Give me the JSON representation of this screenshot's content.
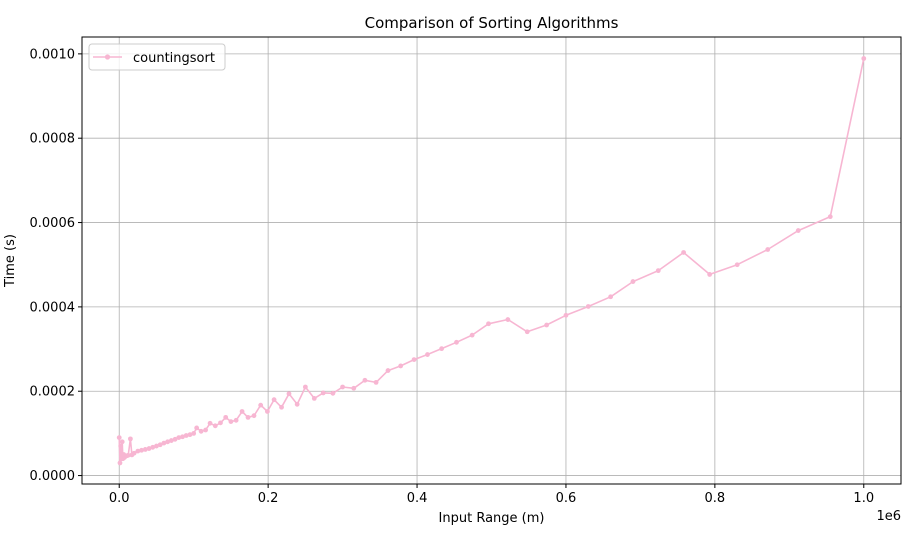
{
  "chart_data": {
    "type": "line",
    "title": "Comparison of Sorting Algorithms",
    "xlabel": "Input Range (m)",
    "ylabel": "Time (s)",
    "x_offset_text": "1e6",
    "xlim": [
      -0.05,
      1.05
    ],
    "ylim": [
      -2e-05,
      0.00104
    ],
    "x_ticks": [
      0.0,
      0.2,
      0.4,
      0.6,
      0.8,
      1.0
    ],
    "x_tick_labels": [
      "0.0",
      "0.2",
      "0.4",
      "0.6",
      "0.8",
      "1.0"
    ],
    "y_ticks": [
      0.0,
      0.0002,
      0.0004,
      0.0006,
      0.0008,
      0.001
    ],
    "y_tick_labels": [
      "0.0000",
      "0.0002",
      "0.0004",
      "0.0006",
      "0.0008",
      "0.0010"
    ],
    "grid": true,
    "legend_position": "top-left",
    "colors": {
      "series": "#f7b6d2",
      "grid": "#b0b0b0",
      "axis": "#000000"
    },
    "series": [
      {
        "name": "countingsort",
        "x": [
          0,
          0.001,
          0.002,
          0.003,
          0.004,
          0.005,
          0.006,
          0.007,
          0.008,
          0.01,
          0.012,
          0.015,
          0.017,
          0.02,
          0.025,
          0.03,
          0.035,
          0.04,
          0.045,
          0.05,
          0.055,
          0.06,
          0.065,
          0.07,
          0.075,
          0.08,
          0.085,
          0.09,
          0.095,
          0.1,
          0.104,
          0.11,
          0.116,
          0.122,
          0.129,
          0.136,
          0.143,
          0.15,
          0.157,
          0.165,
          0.173,
          0.181,
          0.19,
          0.199,
          0.208,
          0.218,
          0.228,
          0.239,
          0.25,
          0.262,
          0.274,
          0.287,
          0.3,
          0.315,
          0.33,
          0.345,
          0.361,
          0.378,
          0.396,
          0.414,
          0.433,
          0.453,
          0.474,
          0.496,
          0.522,
          0.548,
          0.574,
          0.6,
          0.63,
          0.66,
          0.69,
          0.724,
          0.758,
          0.793,
          0.83,
          0.871,
          0.912,
          0.955,
          1.0
        ],
        "y": [
          9e-05,
          3e-05,
          7e-05,
          4e-05,
          8e-05,
          4e-05,
          5e-05,
          4.3e-05,
          4.5e-05,
          4.7e-05,
          4.8e-05,
          8.7e-05,
          4.9e-05,
          5.3e-05,
          5.8e-05,
          6e-05,
          6.2e-05,
          6.4e-05,
          6.7e-05,
          7e-05,
          7.3e-05,
          7.7e-05,
          8e-05,
          8.3e-05,
          8.6e-05,
          9e-05,
          9.2e-05,
          9.5e-05,
          9.7e-05,
          0.0001,
          0.000113,
          0.000105,
          0.000108,
          0.000124,
          0.000118,
          0.000125,
          0.000138,
          0.000128,
          0.000131,
          0.000152,
          0.000138,
          0.000142,
          0.000167,
          0.000152,
          0.00018,
          0.000162,
          0.000194,
          0.000169,
          0.00021,
          0.000183,
          0.000196,
          0.000195,
          0.00021,
          0.000207,
          0.000226,
          0.000221,
          0.000249,
          0.00026,
          0.000275,
          0.000287,
          0.000301,
          0.000316,
          0.000333,
          0.00036,
          0.00037,
          0.000341,
          0.000357,
          0.00038,
          0.000401,
          0.000424,
          0.00046,
          0.000486,
          0.000529,
          0.000477,
          0.0005,
          0.000536,
          0.000581,
          0.000614,
          0.000989
        ]
      }
    ]
  }
}
